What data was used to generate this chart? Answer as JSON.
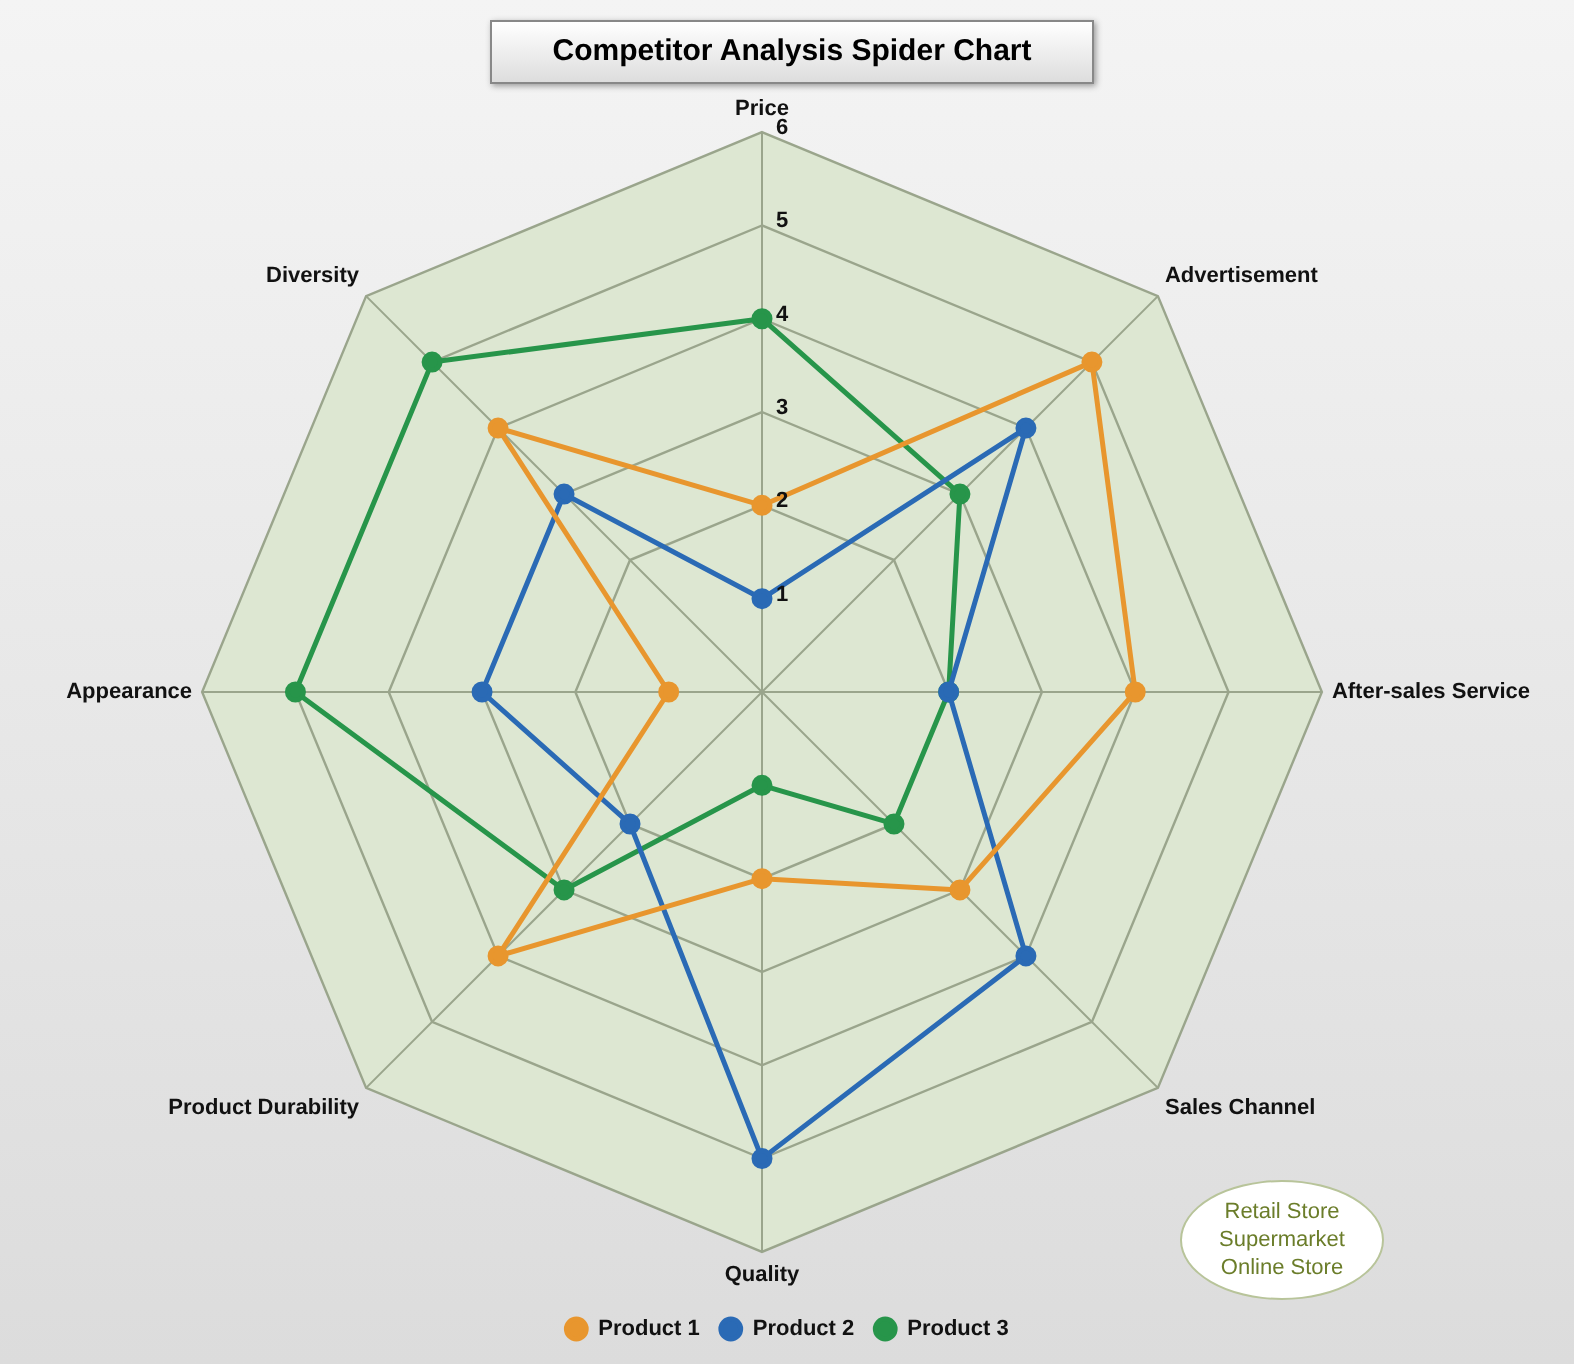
{
  "chart_data": {
    "type": "radar",
    "title": "Competitor Analysis Spider Chart",
    "categories": [
      "Price",
      "Advertisement",
      "After-sales Service",
      "Sales Channel",
      "Quality",
      "Product Durability",
      "Appearance",
      "Diversity"
    ],
    "series": [
      {
        "name": "Product 1",
        "color": "#e8962e",
        "values": [
          2,
          5,
          4,
          3,
          2,
          4,
          1,
          4
        ]
      },
      {
        "name": "Product 2",
        "color": "#2a6ab5",
        "values": [
          1,
          4,
          2,
          4,
          5,
          2,
          3,
          3
        ]
      },
      {
        "name": "Product 3",
        "color": "#27954a",
        "values": [
          4,
          3,
          2,
          2,
          1,
          3,
          5,
          5
        ]
      }
    ],
    "ylim": [
      0,
      6
    ],
    "yticks": [
      1,
      2,
      3,
      4,
      5,
      6
    ],
    "grid": true,
    "legend": "bottom",
    "marker": "circle",
    "line_style": "solid",
    "annotations": [
      "Retail Store\nSupermarket\nOnline Store"
    ]
  }
}
